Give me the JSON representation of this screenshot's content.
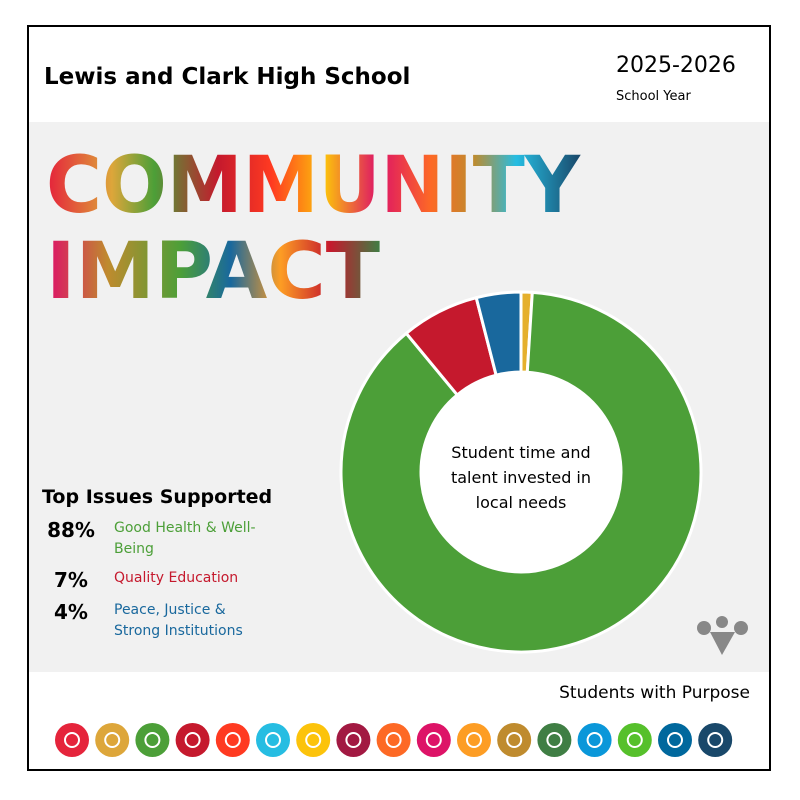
{
  "header": {
    "title": "Lewis and Clark High School",
    "year": "2025-2026",
    "year_label": "School Year"
  },
  "headline": [
    "COMMUNITY",
    "IMPACT"
  ],
  "legend_title": "Top Issues Supported",
  "footer": "Students with Purpose",
  "chart_data": {
    "type": "pie",
    "center_text": "Student time and talent invested in local needs",
    "categories": [
      null,
      "Good Health & Well-Being",
      "Quality Education",
      "Peace, Justice & Strong Institutions"
    ],
    "values": [
      1,
      88,
      7,
      4
    ],
    "value_labels": [
      null,
      "88%",
      "7%",
      "4%"
    ],
    "colors": [
      "#e5b02d",
      "#4c9f38",
      "#c5192d",
      "#19689d"
    ]
  }
}
